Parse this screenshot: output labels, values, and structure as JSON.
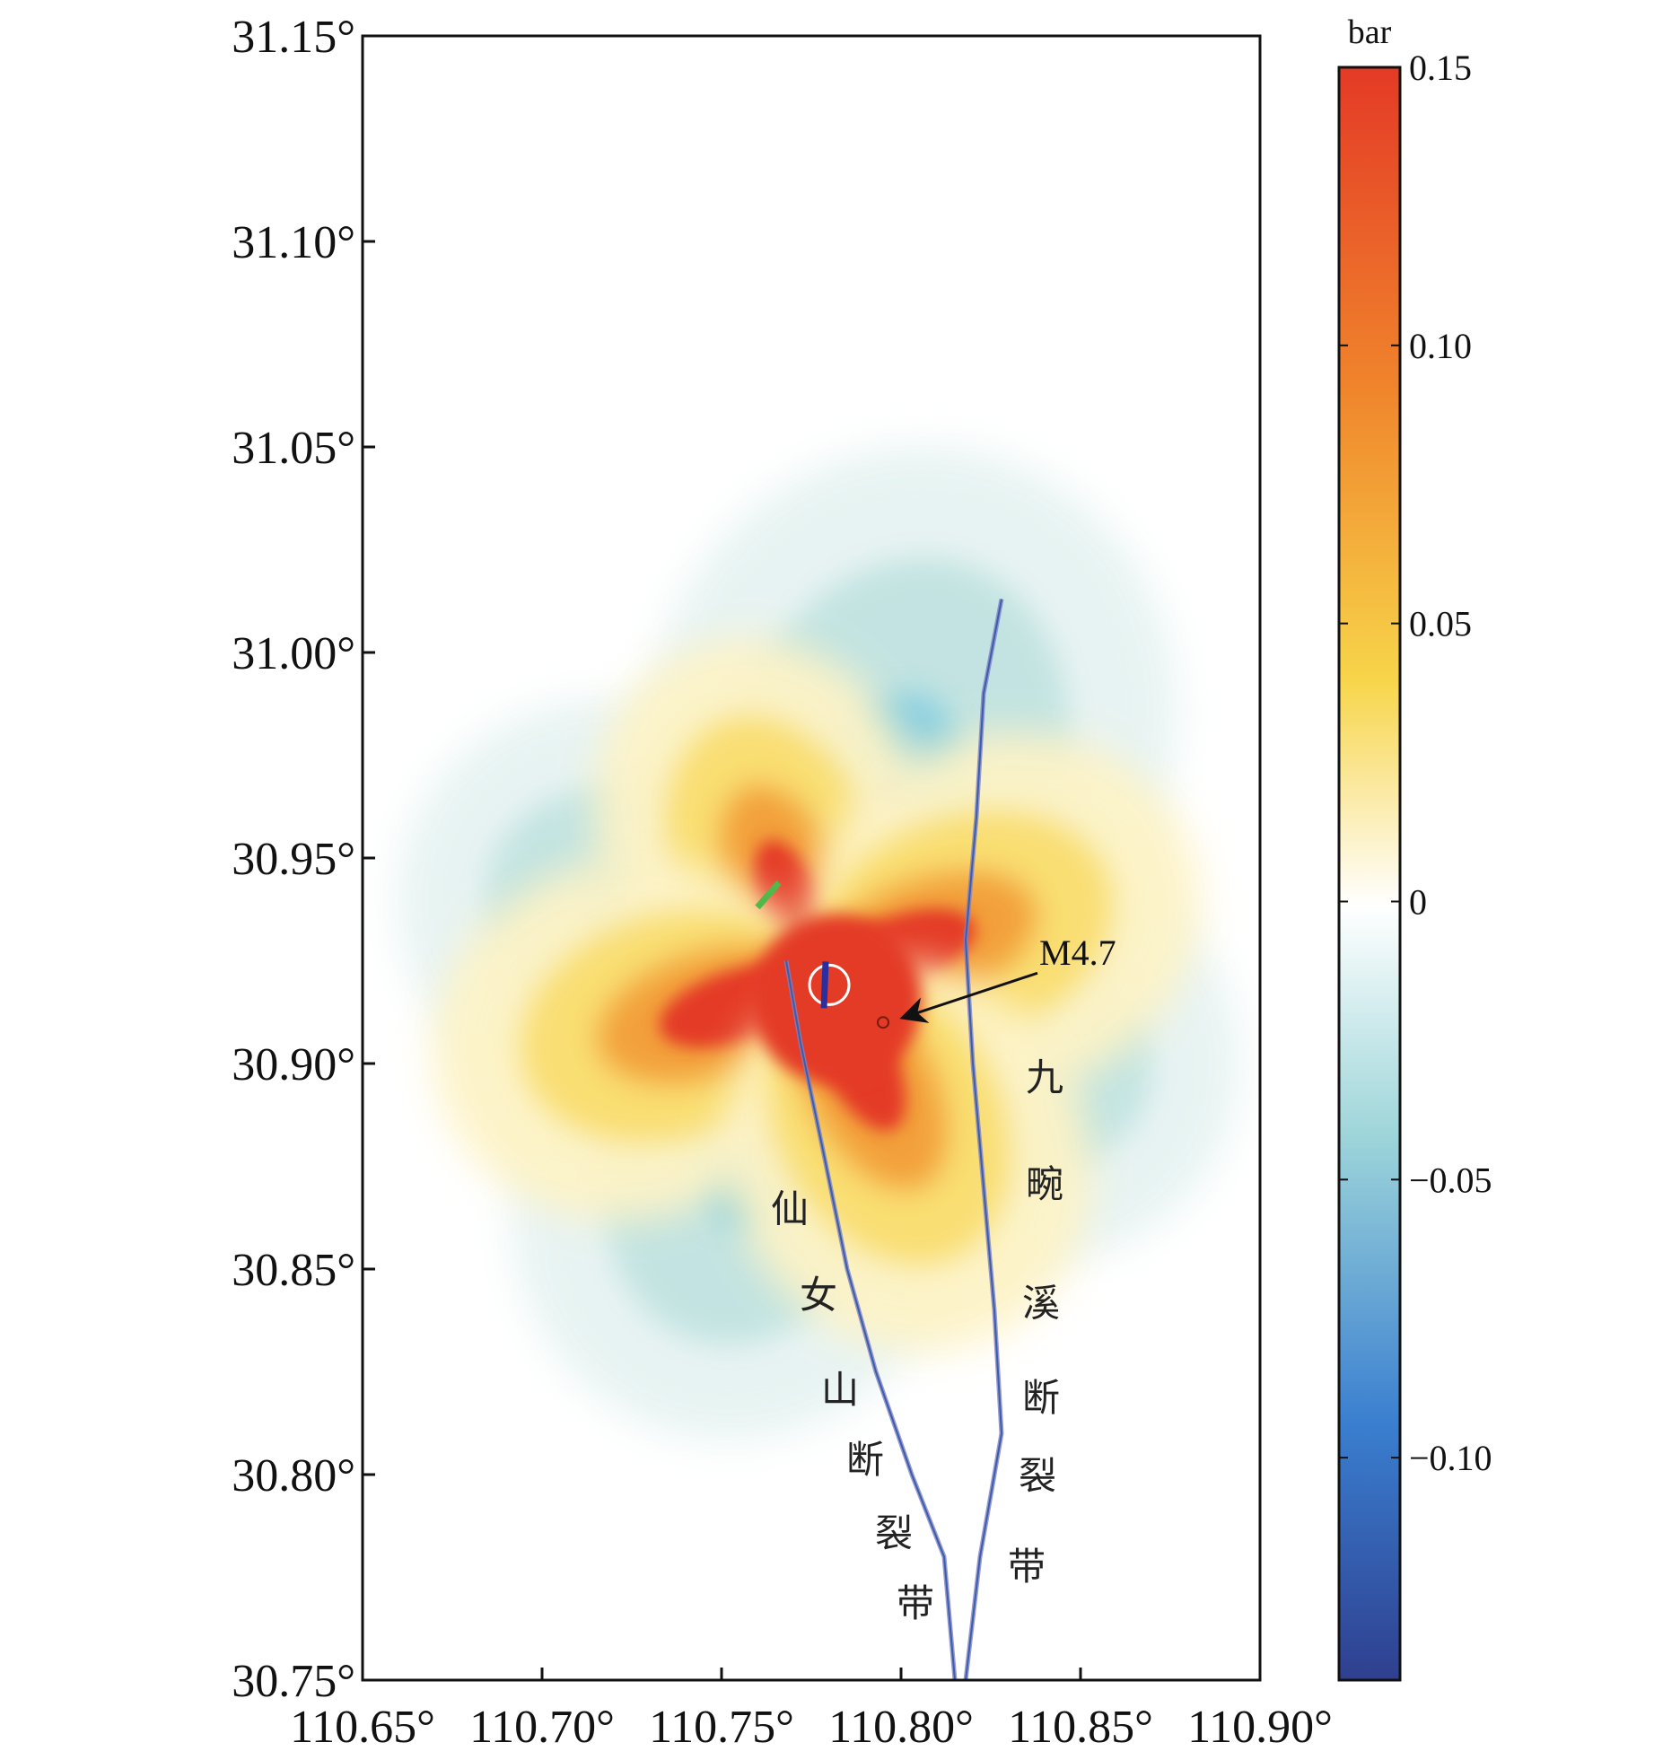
{
  "chart_data": {
    "type": "heatmap",
    "title": "",
    "x_ticks": [
      "110.65°",
      "110.70°",
      "110.75°",
      "110.80°",
      "110.85°",
      "110.90°"
    ],
    "x_tick_values": [
      110.65,
      110.7,
      110.75,
      110.8,
      110.85,
      110.9
    ],
    "y_ticks": [
      "31.15°",
      "31.10°",
      "31.05°",
      "31.00°",
      "30.95°",
      "30.90°",
      "30.85°",
      "30.80°",
      "30.75°"
    ],
    "y_tick_values": [
      31.15,
      31.1,
      31.05,
      31.0,
      30.95,
      30.9,
      30.85,
      30.8,
      30.75
    ],
    "xlim": [
      110.65,
      110.9
    ],
    "ylim": [
      30.75,
      31.15
    ],
    "colorbar": {
      "unit": "bar",
      "range": [
        -0.14,
        0.15
      ],
      "ticks": [
        "0.15",
        "0.10",
        "0.05",
        "0",
        "−0.05",
        "−0.10"
      ],
      "tick_values": [
        0.15,
        0.1,
        0.05,
        0,
        -0.05,
        -0.1
      ],
      "colors": [
        "#2f3f8f",
        "#3a7fd0",
        "#9fd6da",
        "#ffffff",
        "#f7d54a",
        "#f0852c",
        "#e43a26"
      ]
    },
    "annotation": {
      "text": "M4.7",
      "lon": 110.8,
      "lat": 30.91
    },
    "epicenter": {
      "lon": 110.777,
      "lat": 30.92
    },
    "faults": [
      {
        "name": "仙女山断裂带",
        "characters": [
          "仙",
          "女",
          "山",
          "断",
          "裂",
          "带"
        ],
        "label_points": [
          [
            110.769,
            30.864
          ],
          [
            110.777,
            30.843
          ],
          [
            110.783,
            30.82
          ],
          [
            110.79,
            30.803
          ],
          [
            110.798,
            30.785
          ],
          [
            110.804,
            30.768
          ]
        ],
        "trace": [
          [
            110.768,
            30.925
          ],
          [
            110.772,
            30.905
          ],
          [
            110.778,
            30.88
          ],
          [
            110.785,
            30.85
          ],
          [
            110.793,
            30.825
          ],
          [
            110.803,
            30.8
          ],
          [
            110.812,
            30.78
          ],
          [
            110.815,
            30.75
          ]
        ]
      },
      {
        "name": "九畹溪断裂带",
        "characters": [
          "九",
          "畹",
          "溪",
          "断",
          "裂",
          "带"
        ],
        "label_points": [
          [
            110.84,
            30.896
          ],
          [
            110.84,
            30.87
          ],
          [
            110.839,
            30.841
          ],
          [
            110.839,
            30.818
          ],
          [
            110.838,
            30.799
          ],
          [
            110.835,
            30.777
          ]
        ],
        "trace": [
          [
            110.828,
            31.013
          ],
          [
            110.823,
            30.99
          ],
          [
            110.821,
            30.96
          ],
          [
            110.818,
            30.93
          ],
          [
            110.82,
            30.9
          ],
          [
            110.823,
            30.87
          ],
          [
            110.826,
            30.84
          ],
          [
            110.828,
            30.81
          ],
          [
            110.822,
            30.78
          ],
          [
            110.818,
            30.75
          ]
        ]
      }
    ],
    "lobes": [
      {
        "sign": 1,
        "angle_deg": 110,
        "length_km": 0.09
      },
      {
        "sign": 1,
        "angle_deg": 197,
        "length_km": 0.1
      },
      {
        "sign": 1,
        "angle_deg": 20,
        "length_km": 0.1
      },
      {
        "sign": 1,
        "angle_deg": 297,
        "length_km": 0.1
      },
      {
        "sign": -1,
        "angle_deg": 70,
        "length_km": 0.14
      },
      {
        "sign": -1,
        "angle_deg": 160,
        "length_km": 0.11
      },
      {
        "sign": -1,
        "angle_deg": 250,
        "length_km": 0.12
      },
      {
        "sign": -1,
        "angle_deg": 340,
        "length_km": 0.11
      }
    ]
  }
}
